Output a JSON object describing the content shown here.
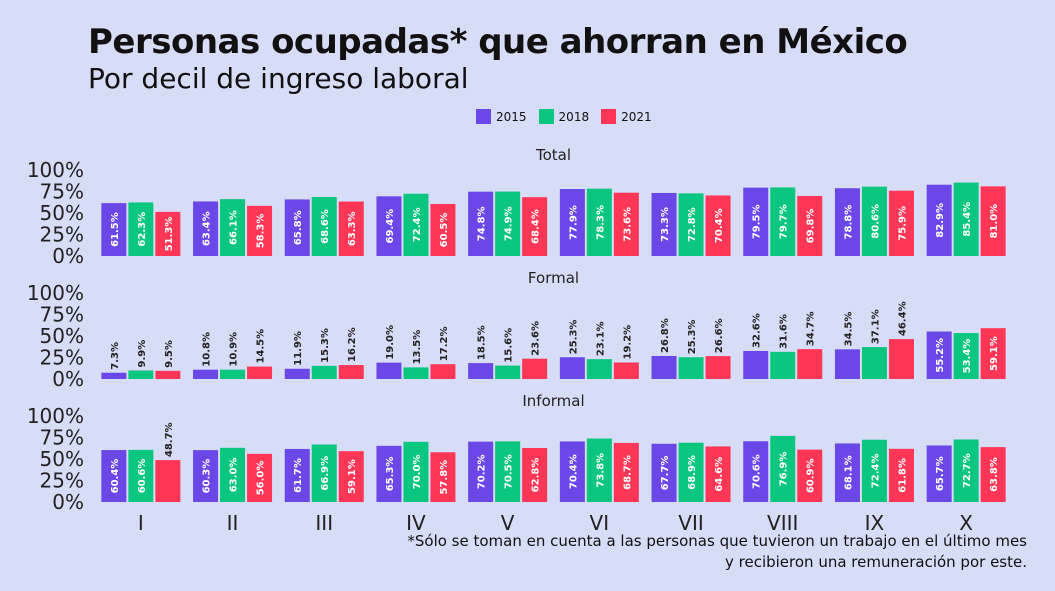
{
  "chart_data": {
    "type": "bar",
    "title": "Personas ocupadas* que ahorran en México",
    "subtitle": "Por decil de ingreso laboral",
    "categories": [
      "I",
      "II",
      "III",
      "IV",
      "V",
      "VI",
      "VII",
      "VIII",
      "IX",
      "X"
    ],
    "legend": [
      {
        "label": "2015",
        "color": "#6c47e8"
      },
      {
        "label": "2018",
        "color": "#0bc67f"
      },
      {
        "label": "2021",
        "color": "#ff3656"
      }
    ],
    "y_ticks": [
      "100%",
      "75%",
      "50%",
      "25%",
      "0%"
    ],
    "ylim": [
      0,
      100
    ],
    "legend_position": "top",
    "grid": false,
    "panels": [
      {
        "name": "Total",
        "series": [
          {
            "name": "2015",
            "values": [
              61.5,
              63.4,
              65.8,
              69.4,
              74.8,
              77.9,
              73.3,
              79.5,
              78.8,
              82.9
            ]
          },
          {
            "name": "2018",
            "values": [
              62.3,
              66.1,
              68.6,
              72.4,
              74.9,
              78.3,
              72.8,
              79.7,
              80.6,
              85.4
            ]
          },
          {
            "name": "2021",
            "values": [
              51.3,
              58.3,
              63.3,
              60.5,
              68.4,
              73.6,
              70.4,
              69.8,
              75.9,
              81.0
            ]
          }
        ]
      },
      {
        "name": "Formal",
        "series": [
          {
            "name": "2015",
            "values": [
              7.3,
              10.8,
              11.9,
              19.0,
              18.5,
              25.3,
              26.8,
              32.6,
              34.5,
              55.2
            ]
          },
          {
            "name": "2018",
            "values": [
              9.9,
              10.9,
              15.3,
              13.5,
              15.6,
              23.1,
              25.3,
              31.6,
              37.1,
              53.4
            ]
          },
          {
            "name": "2021",
            "values": [
              9.5,
              14.5,
              16.2,
              17.2,
              23.6,
              19.2,
              26.6,
              34.7,
              46.4,
              59.1
            ]
          }
        ]
      },
      {
        "name": "Informal",
        "series": [
          {
            "name": "2015",
            "values": [
              60.4,
              60.3,
              61.7,
              65.3,
              70.2,
              70.4,
              67.7,
              70.6,
              68.1,
              65.7
            ]
          },
          {
            "name": "2018",
            "values": [
              60.6,
              63.0,
              66.9,
              70.0,
              70.5,
              73.8,
              68.9,
              76.9,
              72.4,
              72.7
            ]
          },
          {
            "name": "2021",
            "values": [
              48.7,
              56.0,
              59.1,
              57.8,
              62.8,
              68.7,
              64.6,
              60.9,
              61.8,
              63.8
            ]
          }
        ]
      }
    ]
  },
  "footnote": {
    "line1": "*Sólo se toman en cuenta a las personas que tuvieron un trabajo en el último mes",
    "line2": "y recibieron una remuneración por este."
  }
}
